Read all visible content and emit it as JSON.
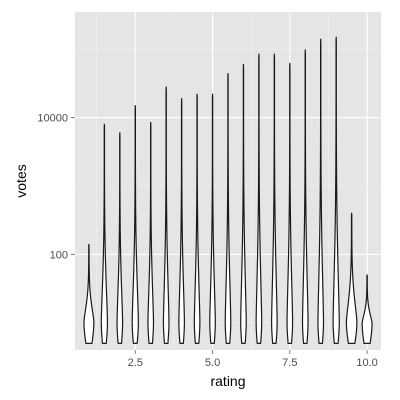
{
  "chart_data": {
    "type": "violin",
    "xlabel": "rating",
    "ylabel": "votes",
    "x_ticks": [
      {
        "value": 2.5,
        "label": "2.5"
      },
      {
        "value": 5.0,
        "label": "5.0"
      },
      {
        "value": 7.5,
        "label": "7.5"
      },
      {
        "value": 10.0,
        "label": "10.0"
      }
    ],
    "y_ticks": [
      {
        "value": 100,
        "label": "100"
      },
      {
        "value": 10000,
        "label": "10000"
      }
    ],
    "xlim": [
      0.55,
      10.45
    ],
    "ylim": [
      4,
      350000
    ],
    "y_scale": "log10",
    "grid": true,
    "panel_background": "#e5e5e5",
    "grid_color": "#ffffff",
    "outline_color": "#1a1a1a",
    "fill_color": "#ffffff",
    "violins": [
      {
        "rating": 1.0,
        "min": 5,
        "max": 140,
        "max_halfwidth": 0.16
      },
      {
        "rating": 1.5,
        "min": 5,
        "max": 8000,
        "max_halfwidth": 0.1
      },
      {
        "rating": 2.0,
        "min": 5,
        "max": 6000,
        "max_halfwidth": 0.09
      },
      {
        "rating": 2.5,
        "min": 5,
        "max": 15000,
        "max_halfwidth": 0.1
      },
      {
        "rating": 3.0,
        "min": 5,
        "max": 8500,
        "max_halfwidth": 0.09
      },
      {
        "rating": 3.5,
        "min": 5,
        "max": 28000,
        "max_halfwidth": 0.09
      },
      {
        "rating": 4.0,
        "min": 5,
        "max": 19000,
        "max_halfwidth": 0.09
      },
      {
        "rating": 4.5,
        "min": 5,
        "max": 22000,
        "max_halfwidth": 0.09
      },
      {
        "rating": 5.0,
        "min": 5,
        "max": 22000,
        "max_halfwidth": 0.09
      },
      {
        "rating": 5.5,
        "min": 5,
        "max": 44000,
        "max_halfwidth": 0.09
      },
      {
        "rating": 6.0,
        "min": 5,
        "max": 60000,
        "max_halfwidth": 0.09
      },
      {
        "rating": 6.5,
        "min": 5,
        "max": 85000,
        "max_halfwidth": 0.09
      },
      {
        "rating": 7.0,
        "min": 5,
        "max": 85000,
        "max_halfwidth": 0.09
      },
      {
        "rating": 7.5,
        "min": 5,
        "max": 62000,
        "max_halfwidth": 0.09
      },
      {
        "rating": 8.0,
        "min": 5,
        "max": 98000,
        "max_halfwidth": 0.09
      },
      {
        "rating": 8.5,
        "min": 5,
        "max": 140000,
        "max_halfwidth": 0.09
      },
      {
        "rating": 9.0,
        "min": 5,
        "max": 150000,
        "max_halfwidth": 0.1
      },
      {
        "rating": 9.5,
        "min": 5,
        "max": 400,
        "max_halfwidth": 0.17
      },
      {
        "rating": 10.0,
        "min": 5,
        "max": 50,
        "max_halfwidth": 0.16
      }
    ]
  }
}
